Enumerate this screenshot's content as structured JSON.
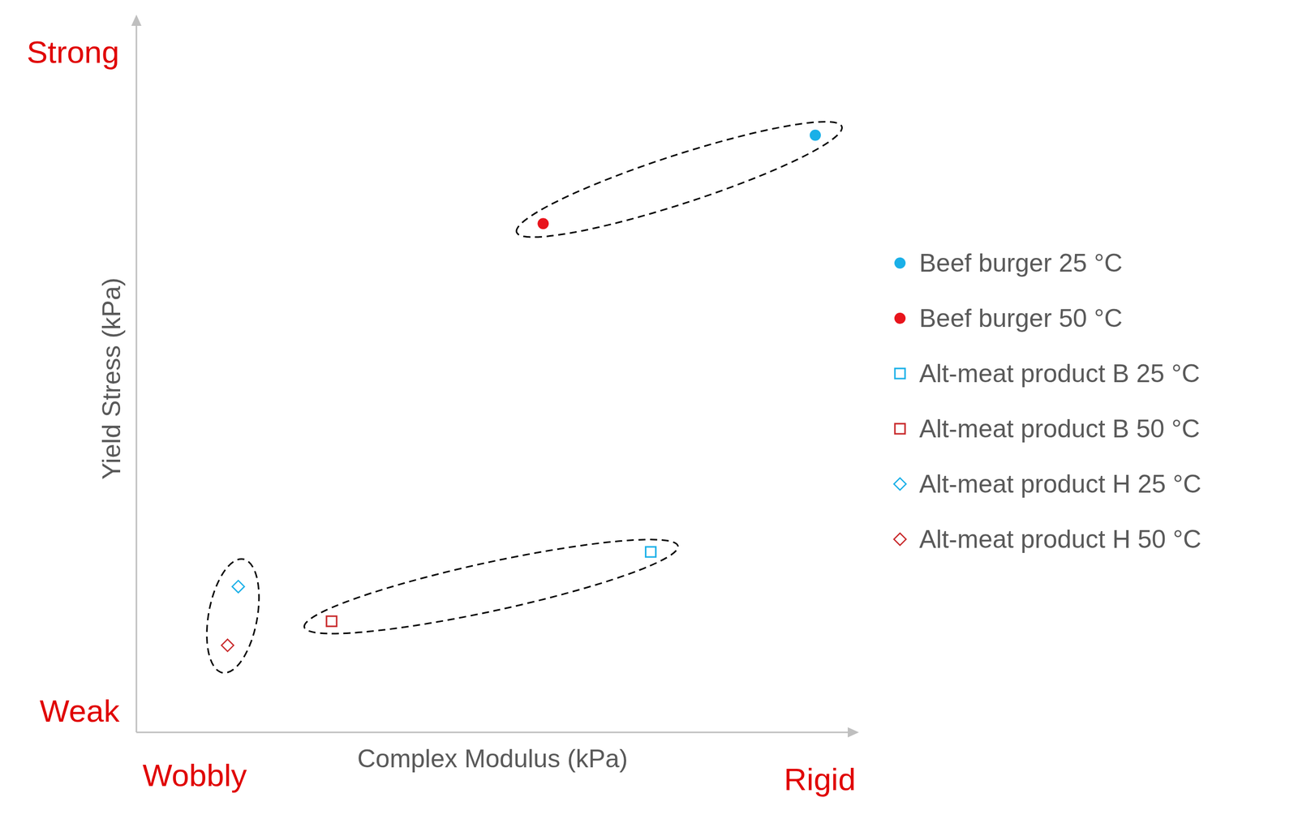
{
  "chart_data": {
    "type": "scatter",
    "x_label": "Complex Modulus (kPa)",
    "y_label": "Yield Stress (kPa)",
    "annotations": {
      "y_high": "Strong",
      "y_low": "Weak",
      "x_low": "Wobbly",
      "x_high": "Rigid"
    },
    "xlim": [
      0,
      100
    ],
    "ylim": [
      0,
      100
    ],
    "tick_labels": false,
    "grid": false,
    "legend": "right",
    "series": [
      {
        "name": "Beef burger 25 °C",
        "color": "#1ab0e8",
        "marker": "circle",
        "x": [
          95.3
        ],
        "y": [
          84.4
        ]
      },
      {
        "name": "Beef burger 50 °C",
        "color": "#e8141c",
        "marker": "circle",
        "x": [
          57.1
        ],
        "y": [
          71.9
        ]
      },
      {
        "name": "Alt-meat product B 25 °C",
        "color": "#1ab0e8",
        "marker": "square_open",
        "x": [
          72.2
        ],
        "y": [
          25.5
        ]
      },
      {
        "name": "Alt-meat product B 50 °C",
        "color": "#c8282a",
        "marker": "square_open",
        "x": [
          27.4
        ],
        "y": [
          15.7
        ]
      },
      {
        "name": "Alt-meat product H 25 °C",
        "color": "#1ab0e8",
        "marker": "diamond_open",
        "x": [
          14.3
        ],
        "y": [
          20.6
        ]
      },
      {
        "name": "Alt-meat product H 50 °C",
        "color": "#c8282a",
        "marker": "diamond_open",
        "x": [
          12.8
        ],
        "y": [
          12.3
        ]
      }
    ]
  }
}
